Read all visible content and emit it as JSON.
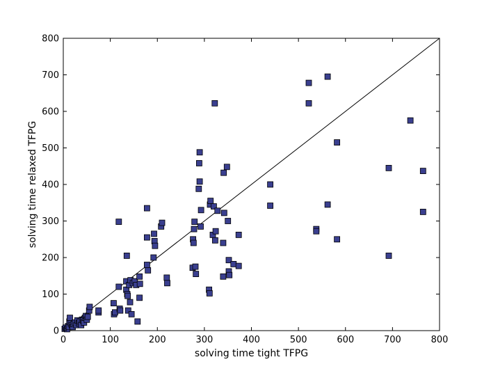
{
  "chart_data": {
    "type": "scatter",
    "title": "",
    "xlabel": "solving time tight TFPG",
    "ylabel": "solving time relaxed TFPG",
    "xlim": [
      0,
      800
    ],
    "ylim": [
      0,
      800
    ],
    "xticks": [
      0,
      100,
      200,
      300,
      400,
      500,
      600,
      700,
      800
    ],
    "yticks": [
      0,
      100,
      200,
      300,
      400,
      500,
      600,
      700,
      800
    ],
    "grid": false,
    "marker": "square",
    "marker_color": "#3a3f8f",
    "reference_line": {
      "from": [
        0,
        0
      ],
      "to": [
        800,
        800
      ]
    },
    "points": [
      [
        3,
        5
      ],
      [
        5,
        8
      ],
      [
        8,
        4
      ],
      [
        10,
        12
      ],
      [
        12,
        10
      ],
      [
        13,
        25
      ],
      [
        14,
        35
      ],
      [
        16,
        20
      ],
      [
        18,
        15
      ],
      [
        20,
        10
      ],
      [
        22,
        18
      ],
      [
        25,
        22
      ],
      [
        28,
        15
      ],
      [
        30,
        28
      ],
      [
        33,
        20
      ],
      [
        35,
        25
      ],
      [
        38,
        15
      ],
      [
        40,
        30
      ],
      [
        42,
        28
      ],
      [
        44,
        22
      ],
      [
        46,
        35
      ],
      [
        48,
        40
      ],
      [
        50,
        30
      ],
      [
        52,
        38
      ],
      [
        55,
        55
      ],
      [
        56,
        65
      ],
      [
        75,
        50
      ],
      [
        75,
        55
      ],
      [
        107,
        75
      ],
      [
        108,
        45
      ],
      [
        110,
        50
      ],
      [
        118,
        120
      ],
      [
        118,
        298
      ],
      [
        120,
        60
      ],
      [
        121,
        55
      ],
      [
        134,
        135
      ],
      [
        134,
        112
      ],
      [
        135,
        205
      ],
      [
        136,
        100
      ],
      [
        137,
        95
      ],
      [
        138,
        55
      ],
      [
        140,
        125
      ],
      [
        142,
        78
      ],
      [
        143,
        138
      ],
      [
        145,
        45
      ],
      [
        148,
        130
      ],
      [
        152,
        135
      ],
      [
        155,
        125
      ],
      [
        158,
        25
      ],
      [
        162,
        90
      ],
      [
        162,
        148
      ],
      [
        163,
        128
      ],
      [
        178,
        180
      ],
      [
        178,
        335
      ],
      [
        178,
        255
      ],
      [
        180,
        165
      ],
      [
        192,
        200
      ],
      [
        193,
        265
      ],
      [
        194,
        245
      ],
      [
        195,
        232
      ],
      [
        208,
        285
      ],
      [
        210,
        295
      ],
      [
        220,
        145
      ],
      [
        221,
        130
      ],
      [
        275,
        172
      ],
      [
        276,
        250
      ],
      [
        277,
        240
      ],
      [
        278,
        278
      ],
      [
        279,
        298
      ],
      [
        281,
        175
      ],
      [
        282,
        155
      ],
      [
        288,
        388
      ],
      [
        289,
        458
      ],
      [
        290,
        488
      ],
      [
        290,
        408
      ],
      [
        292,
        285
      ],
      [
        293,
        330
      ],
      [
        310,
        112
      ],
      [
        311,
        102
      ],
      [
        312,
        345
      ],
      [
        313,
        355
      ],
      [
        318,
        262
      ],
      [
        320,
        340
      ],
      [
        322,
        622
      ],
      [
        323,
        247
      ],
      [
        324,
        272
      ],
      [
        328,
        328
      ],
      [
        340,
        240
      ],
      [
        340,
        148
      ],
      [
        341,
        432
      ],
      [
        342,
        322
      ],
      [
        348,
        448
      ],
      [
        350,
        300
      ],
      [
        352,
        193
      ],
      [
        352,
        162
      ],
      [
        353,
        152
      ],
      [
        362,
        182
      ],
      [
        373,
        262
      ],
      [
        373,
        177
      ],
      [
        440,
        400
      ],
      [
        440,
        342
      ],
      [
        522,
        678
      ],
      [
        522,
        622
      ],
      [
        538,
        278
      ],
      [
        538,
        272
      ],
      [
        562,
        695
      ],
      [
        562,
        345
      ],
      [
        582,
        515
      ],
      [
        582,
        250
      ],
      [
        692,
        445
      ],
      [
        692,
        205
      ],
      [
        738,
        575
      ],
      [
        765,
        437
      ],
      [
        765,
        325
      ]
    ]
  }
}
